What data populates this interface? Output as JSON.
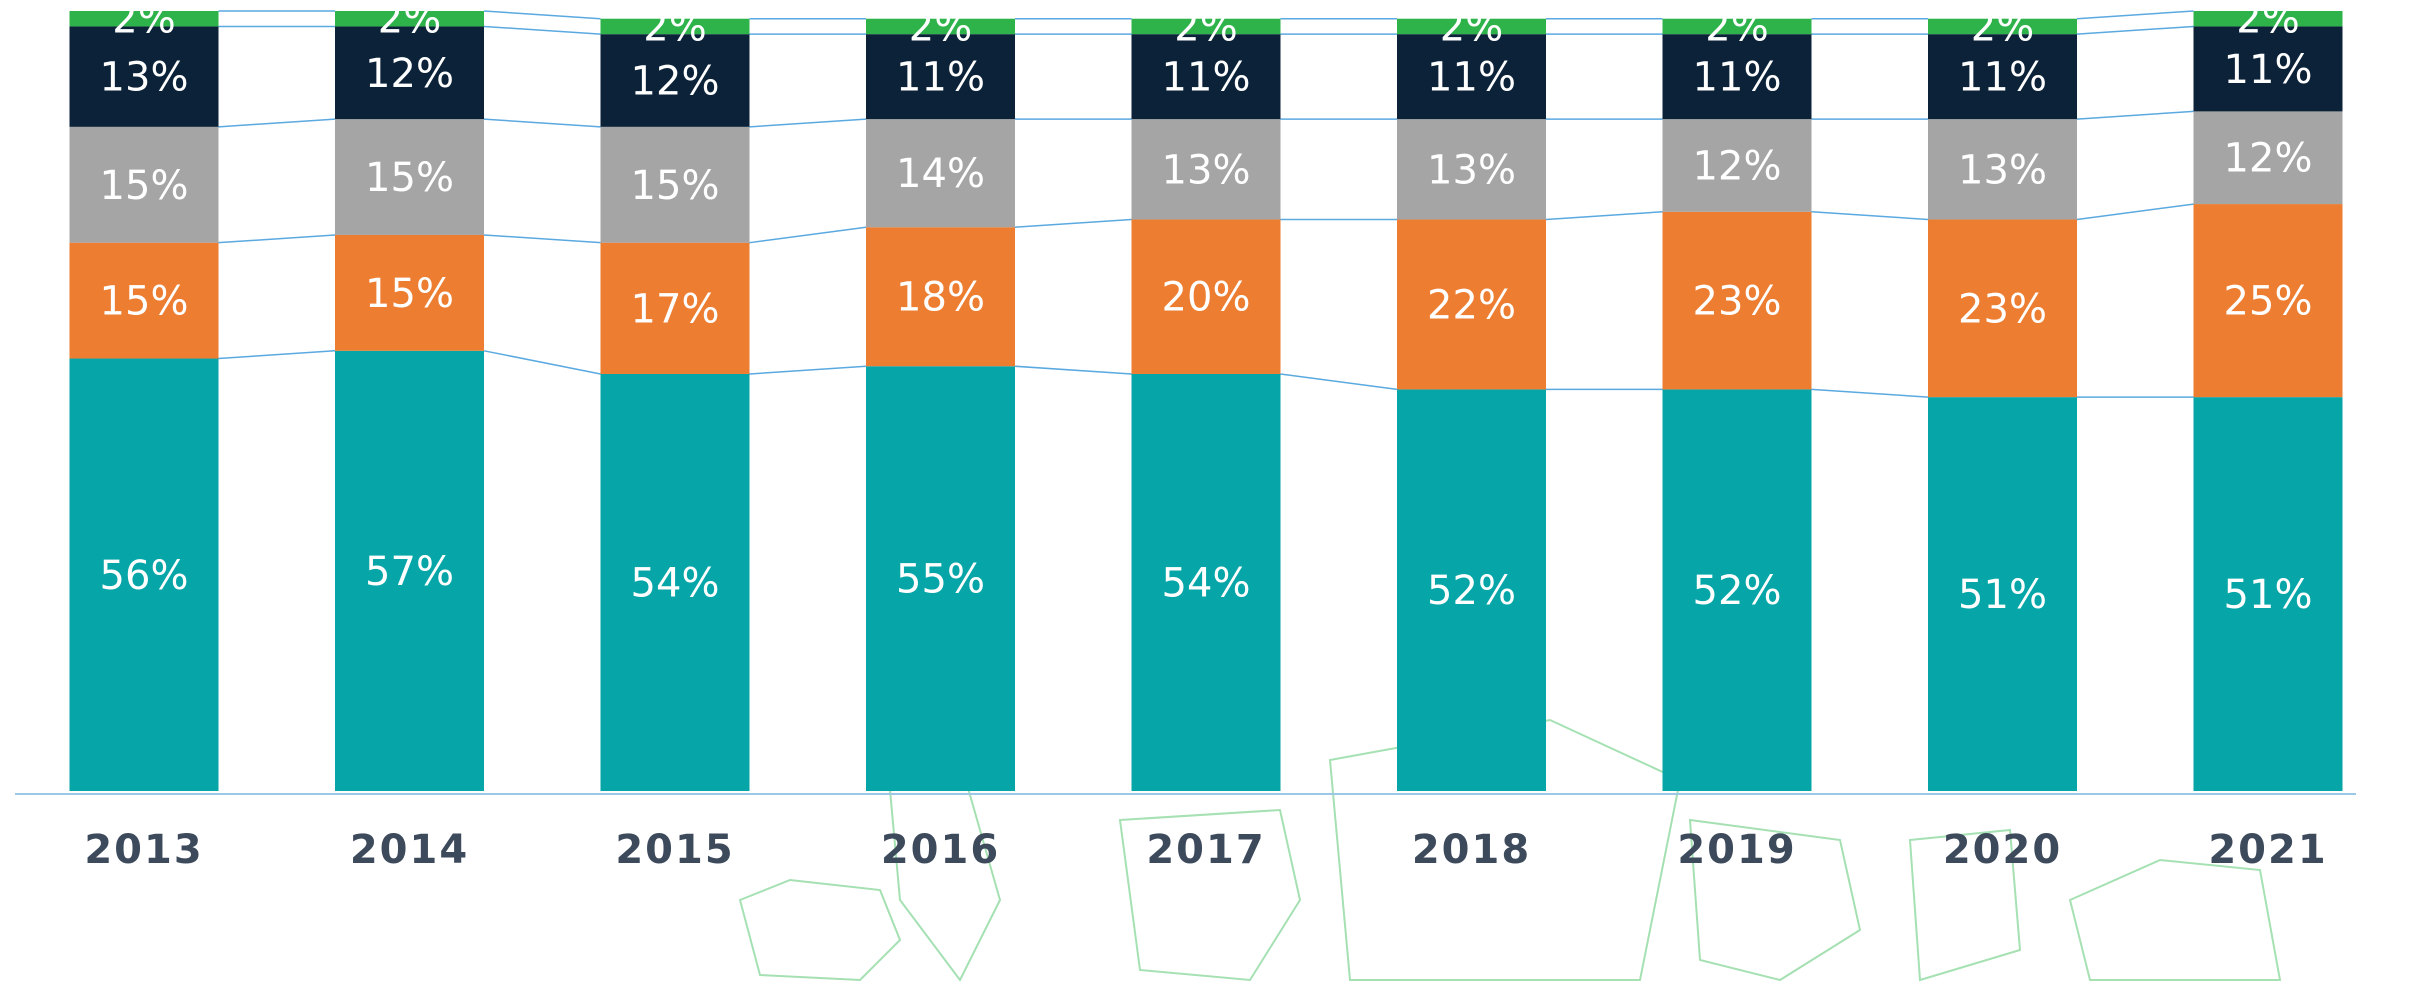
{
  "chart_data": {
    "type": "stacked-bar",
    "categories": [
      "2013",
      "2014",
      "2015",
      "2016",
      "2017",
      "2018",
      "2019",
      "2020",
      "2021"
    ],
    "series": [
      {
        "color": "#06a6a8",
        "values": [
          56,
          57,
          54,
          55,
          54,
          52,
          52,
          51,
          51
        ],
        "value_labels": [
          "56%",
          "57%",
          "54%",
          "55%",
          "54%",
          "52%",
          "52%",
          "51%",
          "51%"
        ]
      },
      {
        "color": "#ed7d31",
        "values": [
          15,
          15,
          17,
          18,
          20,
          22,
          23,
          23,
          25
        ],
        "value_labels": [
          "15%",
          "15%",
          "17%",
          "18%",
          "20%",
          "22%",
          "23%",
          "23%",
          "25%"
        ]
      },
      {
        "color": "#a5a5a5",
        "values": [
          15,
          15,
          15,
          14,
          13,
          13,
          12,
          13,
          12
        ],
        "value_labels": [
          "15%",
          "15%",
          "15%",
          "14%",
          "13%",
          "13%",
          "12%",
          "13%",
          "12%"
        ]
      },
      {
        "color": "#0b2239",
        "values": [
          13,
          12,
          12,
          11,
          11,
          11,
          11,
          11,
          11
        ],
        "value_labels": [
          "13%",
          "12%",
          "12%",
          "11%",
          "11%",
          "11%",
          "11%",
          "11%",
          "11%"
        ]
      },
      {
        "color": "#2db34a",
        "values": [
          2,
          2,
          2,
          2,
          2,
          2,
          2,
          2,
          2
        ],
        "value_labels": [
          "2%",
          "2%",
          "2%",
          "2%",
          "2%",
          "2%",
          "2%",
          "2%",
          "2%"
        ]
      }
    ],
    "ylim": [
      0,
      101
    ]
  }
}
